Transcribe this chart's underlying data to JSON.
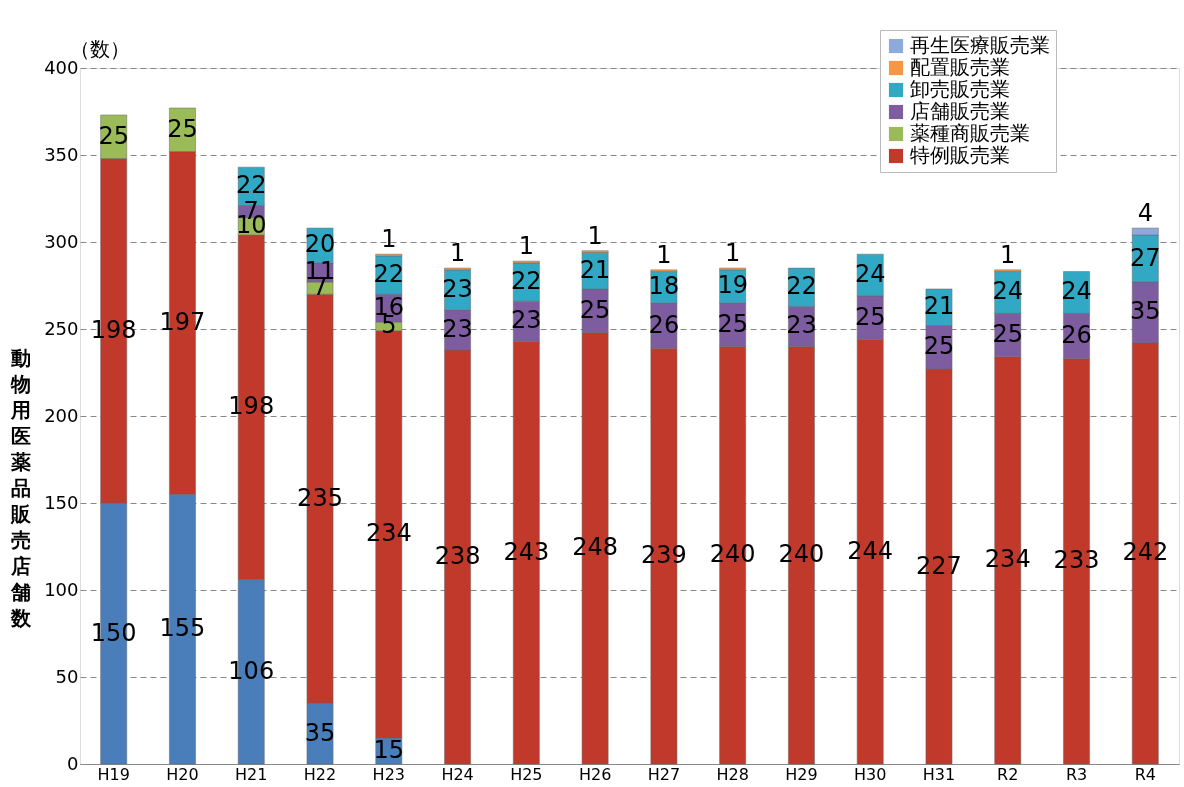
{
  "chart_data": {
    "type": "bar",
    "stacked": true,
    "ylabel": "動物用医薬品販売店舗数",
    "annotations": [
      "（数）"
    ],
    "categories": [
      "H19",
      "H20",
      "H21",
      "H22",
      "H23",
      "H24",
      "H25",
      "H26",
      "H27",
      "H28",
      "H29",
      "H30",
      "H31",
      "R2",
      "R3",
      "R4"
    ],
    "series": [
      {
        "color": "#4a7ebb",
        "values": [
          150,
          155,
          106,
          35,
          15,
          null,
          null,
          null,
          null,
          null,
          null,
          null,
          null,
          null,
          null,
          null
        ]
      },
      {
        "name": "特例販売業",
        "color": "#c0392b",
        "values": [
          198,
          197,
          198,
          235,
          234,
          238,
          243,
          248,
          239,
          240,
          240,
          244,
          227,
          234,
          233,
          242
        ]
      },
      {
        "name": "薬種商販売業",
        "color": "#9bbb59",
        "values": [
          25,
          25,
          10,
          7,
          5,
          null,
          null,
          null,
          null,
          null,
          null,
          null,
          null,
          null,
          null,
          null
        ]
      },
      {
        "name": "店舗販売業",
        "color": "#7e5ca0",
        "values": [
          null,
          null,
          7,
          11,
          16,
          23,
          23,
          25,
          26,
          25,
          23,
          25,
          25,
          25,
          26,
          35
        ]
      },
      {
        "name": "卸売販売業",
        "color": "#31a9c4",
        "values": [
          null,
          null,
          22,
          20,
          22,
          23,
          22,
          21,
          18,
          19,
          22,
          24,
          21,
          24,
          24,
          27
        ]
      },
      {
        "name": "配置販売業",
        "color": "#f79646",
        "values": [
          null,
          null,
          null,
          null,
          1,
          1,
          1,
          1,
          1,
          1,
          null,
          null,
          null,
          1,
          null,
          null
        ]
      },
      {
        "name": "再生医療販売業",
        "color": "#8eaadb",
        "values": [
          null,
          null,
          null,
          null,
          null,
          null,
          null,
          null,
          null,
          null,
          null,
          null,
          null,
          null,
          null,
          4
        ]
      }
    ],
    "data_labels": true,
    "ylim": [
      0,
      400
    ],
    "yticks": [
      0,
      50,
      100,
      150,
      200,
      250,
      300,
      350,
      400
    ],
    "grid": "y",
    "legend": "top right"
  }
}
